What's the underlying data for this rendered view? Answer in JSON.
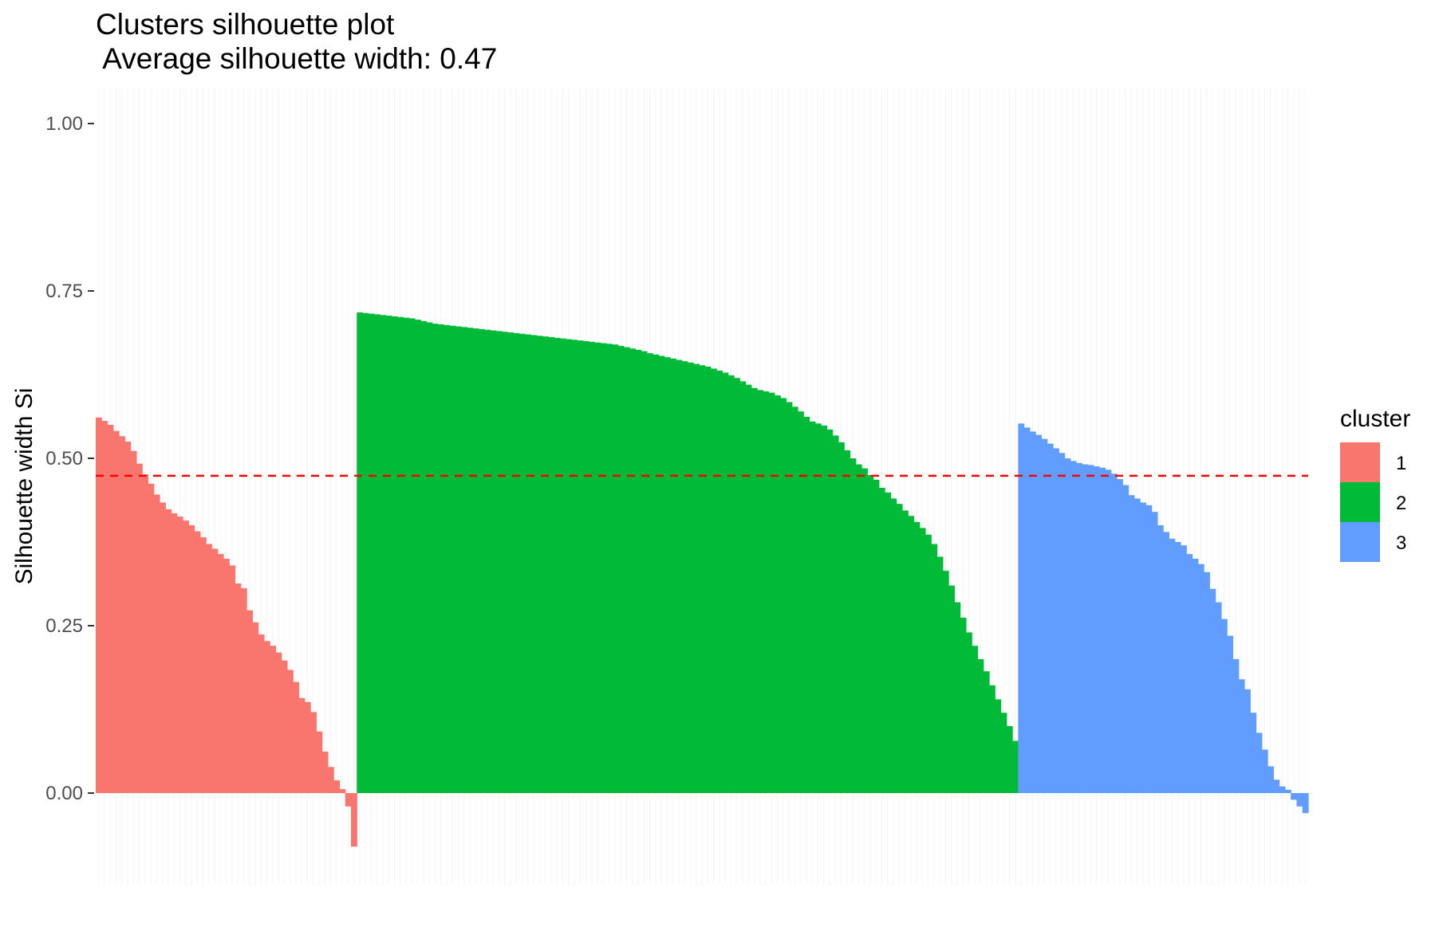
{
  "chart_data": {
    "type": "bar",
    "title": "Clusters silhouette plot",
    "subtitle": " Average silhouette width: 0.47",
    "xlabel": "",
    "ylabel": "Silhouette width Si",
    "ylim": [
      -0.1,
      1.05
    ],
    "yticks": [
      0.0,
      0.25,
      0.5,
      0.75,
      1.0
    ],
    "ytick_labels": [
      "0.00",
      "0.25",
      "0.50",
      "0.75",
      "1.00"
    ],
    "grid": true,
    "legend_placement": "right",
    "average_line": {
      "value": 0.474,
      "color": "#ff0000",
      "style": "dashed"
    },
    "legend": {
      "title": "cluster",
      "items": [
        {
          "label": "1",
          "color": "#F8766D"
        },
        {
          "label": "2",
          "color": "#00BA38"
        },
        {
          "label": "3",
          "color": "#619CFF"
        }
      ]
    },
    "series": [
      {
        "name": "1",
        "color": "#F8766D",
        "values": [
          0.561,
          0.556,
          0.55,
          0.541,
          0.533,
          0.525,
          0.511,
          0.492,
          0.476,
          0.462,
          0.446,
          0.434,
          0.424,
          0.418,
          0.413,
          0.407,
          0.4,
          0.391,
          0.382,
          0.372,
          0.365,
          0.357,
          0.35,
          0.34,
          0.313,
          0.306,
          0.273,
          0.255,
          0.237,
          0.227,
          0.22,
          0.21,
          0.198,
          0.184,
          0.166,
          0.142,
          0.136,
          0.121,
          0.092,
          0.062,
          0.039,
          0.019,
          0.006,
          -0.02,
          -0.08
        ]
      },
      {
        "name": "2",
        "color": "#00BA38",
        "values": [
          0.718,
          0.717,
          0.716,
          0.715,
          0.714,
          0.713,
          0.712,
          0.711,
          0.71,
          0.709,
          0.707,
          0.705,
          0.703,
          0.701,
          0.7,
          0.699,
          0.698,
          0.697,
          0.696,
          0.695,
          0.694,
          0.693,
          0.692,
          0.691,
          0.69,
          0.689,
          0.688,
          0.687,
          0.686,
          0.685,
          0.684,
          0.683,
          0.682,
          0.681,
          0.68,
          0.679,
          0.678,
          0.677,
          0.676,
          0.675,
          0.674,
          0.673,
          0.672,
          0.671,
          0.67,
          0.668,
          0.666,
          0.664,
          0.662,
          0.66,
          0.657,
          0.655,
          0.653,
          0.651,
          0.649,
          0.647,
          0.645,
          0.643,
          0.641,
          0.639,
          0.637,
          0.634,
          0.631,
          0.628,
          0.624,
          0.62,
          0.615,
          0.61,
          0.605,
          0.602,
          0.6,
          0.598,
          0.594,
          0.59,
          0.584,
          0.577,
          0.57,
          0.562,
          0.555,
          0.552,
          0.549,
          0.543,
          0.534,
          0.524,
          0.512,
          0.5,
          0.491,
          0.485,
          0.475,
          0.468,
          0.456,
          0.449,
          0.44,
          0.432,
          0.422,
          0.414,
          0.405,
          0.396,
          0.386,
          0.372,
          0.353,
          0.332,
          0.31,
          0.285,
          0.262,
          0.24,
          0.22,
          0.2,
          0.182,
          0.161,
          0.14,
          0.12,
          0.1,
          0.078
        ]
      },
      {
        "name": "3",
        "color": "#619CFF",
        "values": [
          0.552,
          0.546,
          0.54,
          0.535,
          0.529,
          0.522,
          0.515,
          0.508,
          0.5,
          0.496,
          0.493,
          0.491,
          0.49,
          0.488,
          0.486,
          0.483,
          0.477,
          0.469,
          0.46,
          0.445,
          0.44,
          0.434,
          0.43,
          0.42,
          0.4,
          0.39,
          0.38,
          0.375,
          0.37,
          0.357,
          0.35,
          0.342,
          0.33,
          0.305,
          0.285,
          0.26,
          0.235,
          0.2,
          0.17,
          0.155,
          0.12,
          0.09,
          0.065,
          0.04,
          0.02,
          0.01,
          0.005,
          -0.01,
          -0.02,
          -0.03
        ]
      }
    ]
  }
}
